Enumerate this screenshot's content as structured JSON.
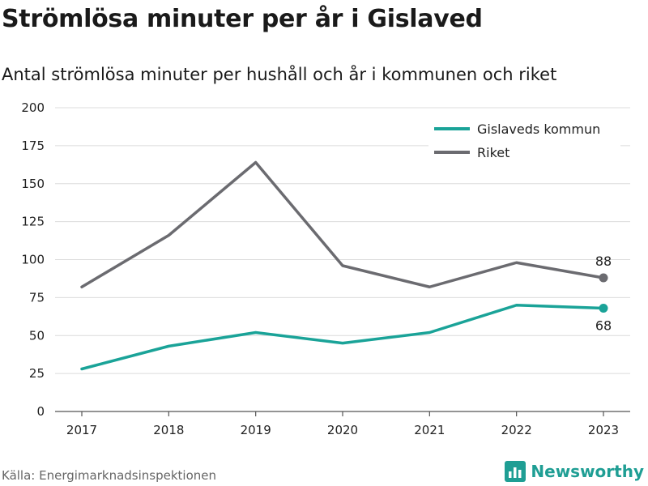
{
  "title": "Strömlösa minuter per år i Gislaved",
  "subtitle": "Antal strömlösa minuter per hushåll och år i kommunen och riket",
  "source": "Källa: Energimarknadsinspektionen",
  "brand": {
    "name": "Newsworthy",
    "logo_icon": "bar-chart-logo-icon",
    "color": "#1f9e94"
  },
  "chart_data": {
    "type": "line",
    "x": [
      "2017",
      "2018",
      "2019",
      "2020",
      "2021",
      "2022",
      "2023"
    ],
    "ylim": [
      0,
      200
    ],
    "yticks": [
      "0",
      "25",
      "50",
      "75",
      "100",
      "125",
      "150",
      "175",
      "200"
    ],
    "grid": true,
    "legend_position": "top-right",
    "series": [
      {
        "name": "Gislaveds kommun",
        "color": "#1aa398",
        "values": [
          28,
          43,
          52,
          45,
          52,
          70,
          68
        ],
        "last_label": "68"
      },
      {
        "name": "Riket",
        "color": "#6b6b70",
        "values": [
          82,
          116,
          164,
          96,
          82,
          98,
          88
        ],
        "last_label": "88"
      }
    ]
  }
}
